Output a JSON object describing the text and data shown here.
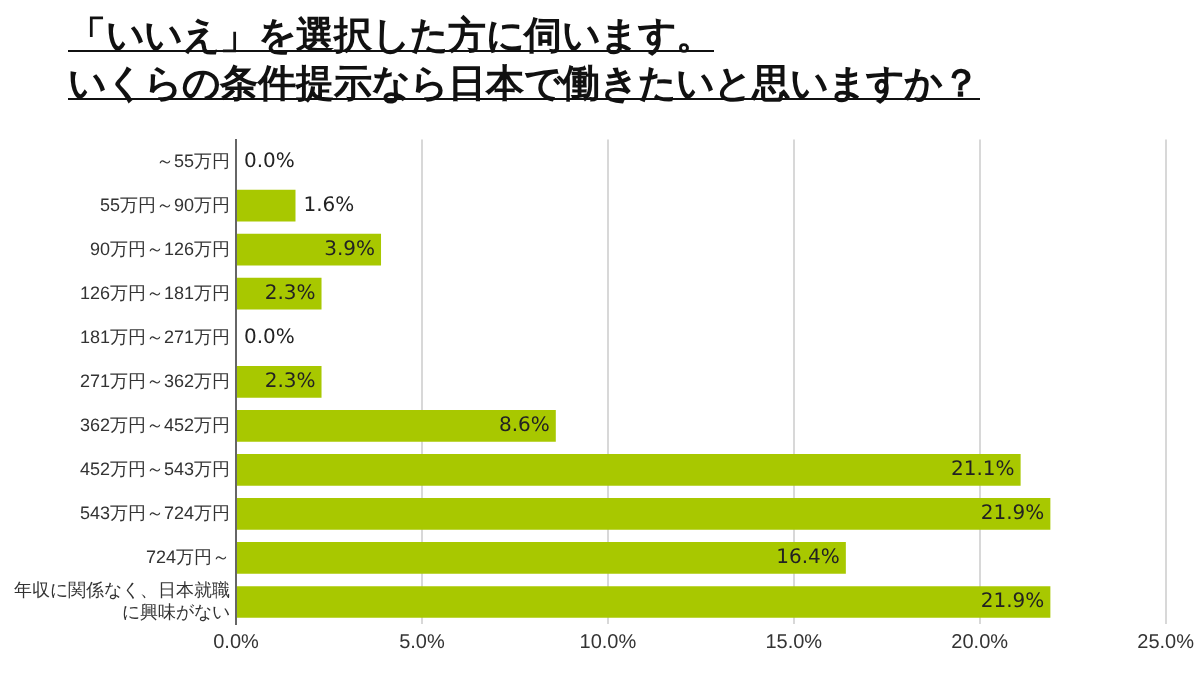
{
  "chart_data": {
    "type": "bar",
    "orientation": "horizontal",
    "title": "「いいえ」を選択した方に伺います。いくらの条件提示なら日本で働きたいと思いますか？",
    "categories": [
      "～55万円",
      "55万円～90万円",
      "90万円～126万円",
      "126万円～181万円",
      "181万円～271万円",
      "271万円～362万円",
      "362万円～452万円",
      "452万円～543万円",
      "543万円～724万円",
      "724万円～",
      "年収に関係なく、日本就職に興味がない"
    ],
    "values": [
      0.0,
      1.6,
      3.9,
      2.3,
      0.0,
      2.3,
      8.6,
      21.1,
      21.9,
      16.4,
      21.9
    ],
    "value_labels": [
      "0.0%",
      "1.6%",
      "3.9%",
      "2.3%",
      "0.0%",
      "2.3%",
      "8.6%",
      "21.1%",
      "21.9%",
      "16.4%",
      "21.9%"
    ],
    "color": "#a8c800",
    "xlim": [
      0,
      25
    ],
    "xticks": [
      {
        "value": 0,
        "label": "0.0%"
      },
      {
        "value": 5,
        "label": "5.0%"
      },
      {
        "value": 10,
        "label": "10.0%"
      },
      {
        "value": 15,
        "label": "15.0%"
      },
      {
        "value": 20,
        "label": "20.0%"
      },
      {
        "value": 25,
        "label": "25.0%"
      }
    ],
    "grid": "x",
    "legend": false
  }
}
